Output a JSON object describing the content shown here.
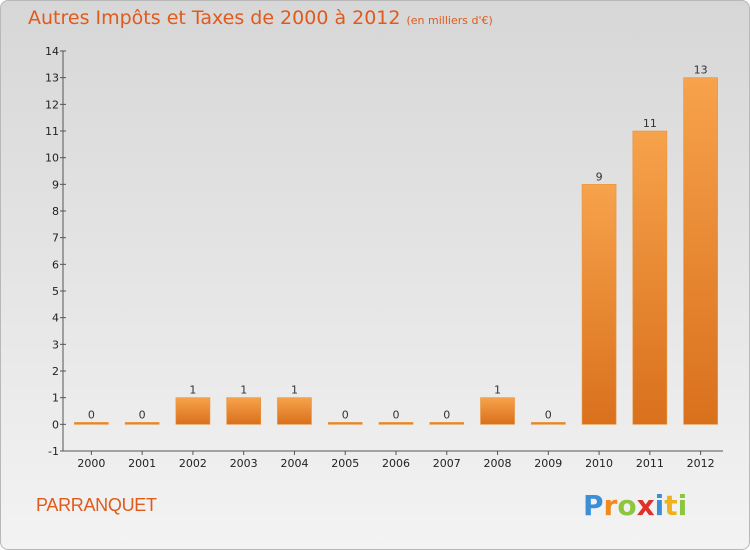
{
  "title": "Autres Impôts et Taxes de 2000 à 2012",
  "unit": "(en milliers d'€)",
  "commune": "PARRANQUET",
  "brand": {
    "letters": [
      "P",
      "r",
      "o",
      "x",
      "i",
      "t",
      "i"
    ],
    "colors": [
      "#3b8fd6",
      "#f08a1c",
      "#8cc63f",
      "#e0302a",
      "#3b8fd6",
      "#f0b21c",
      "#8cc63f"
    ]
  },
  "colors": {
    "bar": "#f08c2e",
    "accent": "#e05a1c"
  },
  "chart_data": {
    "type": "bar",
    "categories": [
      "2000",
      "2001",
      "2002",
      "2003",
      "2004",
      "2005",
      "2006",
      "2007",
      "2008",
      "2009",
      "2010",
      "2011",
      "2012"
    ],
    "values": [
      0,
      0,
      1,
      1,
      1,
      0,
      0,
      0,
      1,
      0,
      9,
      11,
      13
    ],
    "ylim": [
      -1,
      14
    ],
    "yticks": [
      "-1",
      "0",
      "1",
      "2",
      "3",
      "4",
      "5",
      "6",
      "7",
      "8",
      "9",
      "10",
      "11",
      "12",
      "13",
      "14"
    ],
    "grid": false
  }
}
